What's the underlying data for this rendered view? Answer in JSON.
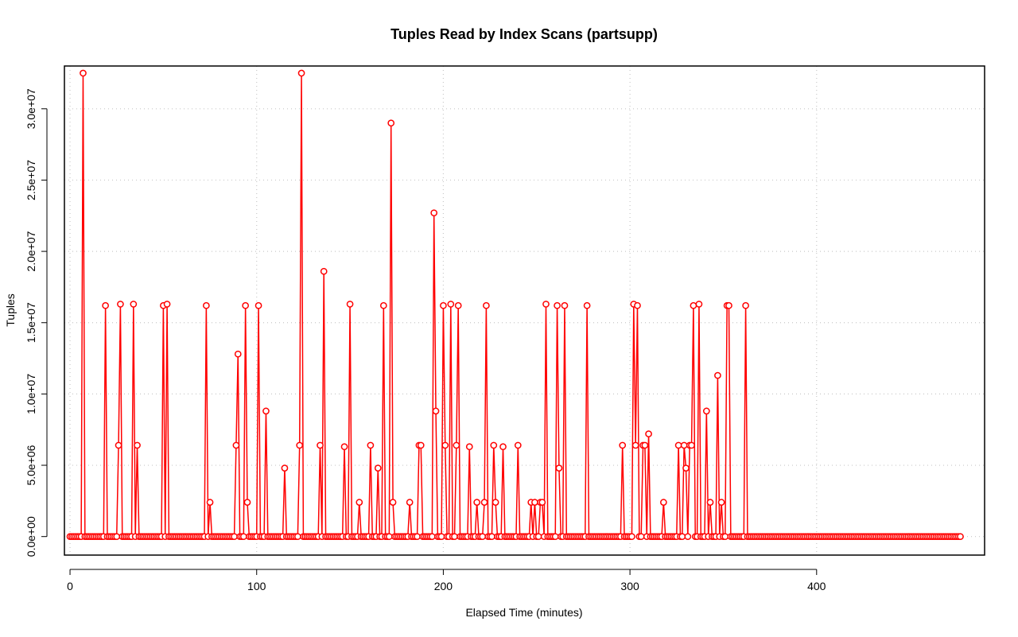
{
  "chart_data": {
    "type": "line",
    "title": "Tuples Read by Index Scans (partsupp)",
    "xlabel": "Elapsed Time (minutes)",
    "ylabel": "Tuples",
    "xlim": [
      -3,
      490
    ],
    "ylim": [
      -1300000,
      33000000
    ],
    "x_ticks": [
      0,
      100,
      200,
      300,
      400
    ],
    "x_tick_labels": [
      "0",
      "100",
      "200",
      "300",
      "400"
    ],
    "y_ticks": [
      0,
      5000000,
      10000000,
      15000000,
      20000000,
      25000000,
      30000000
    ],
    "y_tick_labels": [
      "0.0e+00",
      "5.0e+06",
      "1.0e+07",
      "1.5e+07",
      "2.0e+07",
      "2.5e+07",
      "3.0e+07"
    ],
    "grid": true,
    "x_end": 477,
    "series": [
      {
        "color": "#ff0000",
        "marker": "circle-open",
        "points": [
          [
            7,
            32500000
          ],
          [
            19,
            16200000
          ],
          [
            26,
            6400000
          ],
          [
            27,
            16300000
          ],
          [
            34,
            16300000
          ],
          [
            36,
            6400000
          ],
          [
            50,
            16200000
          ],
          [
            52,
            16300000
          ],
          [
            73,
            16200000
          ],
          [
            75,
            2400000
          ],
          [
            89,
            6400000
          ],
          [
            90,
            12800000
          ],
          [
            94,
            16200000
          ],
          [
            95,
            2400000
          ],
          [
            101,
            16200000
          ],
          [
            105,
            8800000
          ],
          [
            115,
            4800000
          ],
          [
            123,
            6400000
          ],
          [
            124,
            32500000
          ],
          [
            134,
            6400000
          ],
          [
            136,
            18600000
          ],
          [
            147,
            6300000
          ],
          [
            150,
            16300000
          ],
          [
            155,
            2400000
          ],
          [
            161,
            6400000
          ],
          [
            165,
            4800000
          ],
          [
            168,
            16200000
          ],
          [
            172,
            29000000
          ],
          [
            173,
            2400000
          ],
          [
            182,
            2400000
          ],
          [
            187,
            6400000
          ],
          [
            188,
            6400000
          ],
          [
            195,
            22700000
          ],
          [
            196,
            8800000
          ],
          [
            200,
            16200000
          ],
          [
            201,
            6400000
          ],
          [
            204,
            16300000
          ],
          [
            207,
            6400000
          ],
          [
            208,
            16200000
          ],
          [
            214,
            6300000
          ],
          [
            218,
            2400000
          ],
          [
            222,
            2400000
          ],
          [
            223,
            16200000
          ],
          [
            227,
            6400000
          ],
          [
            228,
            2400000
          ],
          [
            232,
            6300000
          ],
          [
            240,
            6400000
          ],
          [
            247,
            2400000
          ],
          [
            249,
            2400000
          ],
          [
            252,
            2400000
          ],
          [
            253,
            2400000
          ],
          [
            255,
            16300000
          ],
          [
            261,
            16200000
          ],
          [
            262,
            4800000
          ],
          [
            265,
            16200000
          ],
          [
            277,
            16200000
          ],
          [
            296,
            6400000
          ],
          [
            302,
            16300000
          ],
          [
            303,
            6400000
          ],
          [
            304,
            16200000
          ],
          [
            307,
            6400000
          ],
          [
            308,
            6400000
          ],
          [
            310,
            7200000
          ],
          [
            318,
            2400000
          ],
          [
            326,
            6400000
          ],
          [
            329,
            6400000
          ],
          [
            330,
            4800000
          ],
          [
            332,
            6400000
          ],
          [
            333,
            6400000
          ],
          [
            334,
            16200000
          ],
          [
            337,
            16300000
          ],
          [
            341,
            8800000
          ],
          [
            343,
            2400000
          ],
          [
            347,
            11300000
          ],
          [
            349,
            2400000
          ],
          [
            352,
            16200000
          ],
          [
            353,
            16200000
          ],
          [
            362,
            16200000
          ]
        ]
      }
    ]
  }
}
